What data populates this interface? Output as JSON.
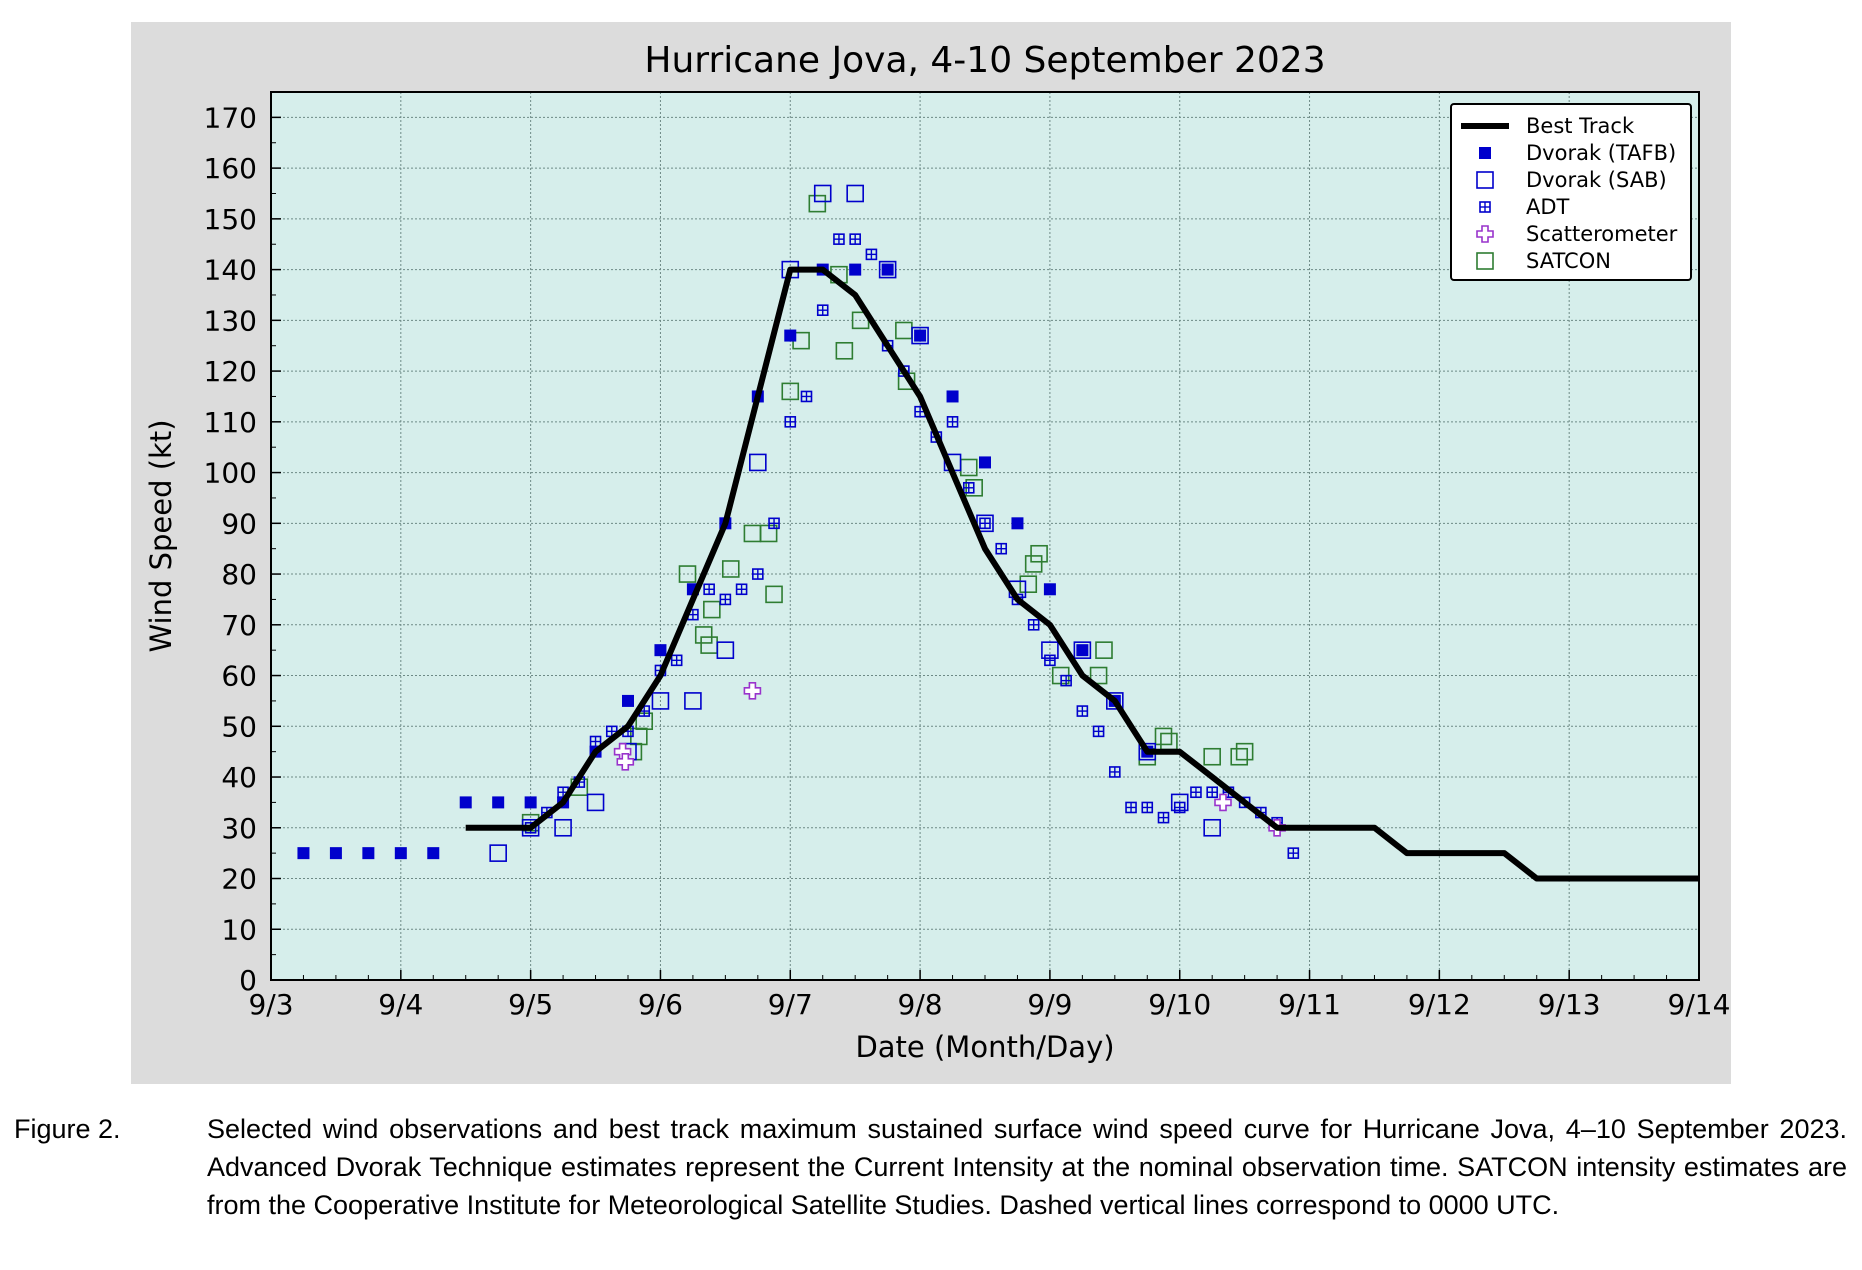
{
  "chart_data": {
    "type": "scatter",
    "title": "Hurricane Jova, 4-10 September 2023",
    "xlabel": "Date (Month/Day)",
    "ylabel": "Wind Speed (kt)",
    "xlim": [
      "9/3",
      "9/14"
    ],
    "ylim": [
      0,
      175
    ],
    "x_ticks": [
      "9/3",
      "9/4",
      "9/5",
      "9/6",
      "9/7",
      "9/8",
      "9/9",
      "9/10",
      "9/11",
      "9/12",
      "9/13",
      "9/14"
    ],
    "y_ticks": [
      0,
      10,
      20,
      30,
      40,
      50,
      60,
      70,
      80,
      90,
      100,
      110,
      120,
      130,
      140,
      150,
      160,
      170
    ],
    "grid": true,
    "legend_position": "top-right",
    "series": [
      {
        "name": "Best Track",
        "style": "line",
        "color": "#000000",
        "points": [
          [
            "9/4 12:00",
            30
          ],
          [
            "9/5 00:00",
            30
          ],
          [
            "9/5 06:00",
            35
          ],
          [
            "9/5 12:00",
            45
          ],
          [
            "9/5 18:00",
            50
          ],
          [
            "9/6 00:00",
            60
          ],
          [
            "9/6 06:00",
            75
          ],
          [
            "9/6 12:00",
            90
          ],
          [
            "9/6 18:00",
            115
          ],
          [
            "9/7 00:00",
            140
          ],
          [
            "9/7 06:00",
            140
          ],
          [
            "9/7 12:00",
            135
          ],
          [
            "9/7 18:00",
            125
          ],
          [
            "9/8 00:00",
            115
          ],
          [
            "9/8 06:00",
            100
          ],
          [
            "9/8 12:00",
            85
          ],
          [
            "9/8 18:00",
            75
          ],
          [
            "9/9 00:00",
            70
          ],
          [
            "9/9 06:00",
            60
          ],
          [
            "9/9 12:00",
            55
          ],
          [
            "9/9 18:00",
            45
          ],
          [
            "9/10 00:00",
            45
          ],
          [
            "9/10 06:00",
            40
          ],
          [
            "9/10 12:00",
            35
          ],
          [
            "9/10 18:00",
            30
          ],
          [
            "9/11 00:00",
            30
          ],
          [
            "9/11 06:00",
            30
          ],
          [
            "9/11 12:00",
            30
          ],
          [
            "9/11 18:00",
            25
          ],
          [
            "9/12 00:00",
            25
          ],
          [
            "9/12 06:00",
            25
          ],
          [
            "9/12 12:00",
            25
          ],
          [
            "9/12 18:00",
            20
          ],
          [
            "9/13 00:00",
            20
          ],
          [
            "9/13 06:00",
            20
          ],
          [
            "9/13 12:00",
            20
          ],
          [
            "9/13 18:00",
            20
          ],
          [
            "9/14 00:00",
            20
          ]
        ]
      },
      {
        "name": "Dvorak (TAFB)",
        "style": "filled-square",
        "color": "#0000cc",
        "points": [
          [
            "9/3 06:00",
            25
          ],
          [
            "9/3 12:00",
            25
          ],
          [
            "9/3 18:00",
            25
          ],
          [
            "9/4 00:00",
            25
          ],
          [
            "9/4 06:00",
            25
          ],
          [
            "9/4 12:00",
            35
          ],
          [
            "9/4 18:00",
            35
          ],
          [
            "9/5 00:00",
            35
          ],
          [
            "9/5 06:00",
            35
          ],
          [
            "9/5 12:00",
            45
          ],
          [
            "9/5 18:00",
            55
          ],
          [
            "9/6 00:00",
            65
          ],
          [
            "9/6 06:00",
            77
          ],
          [
            "9/6 12:00",
            90
          ],
          [
            "9/6 18:00",
            115
          ],
          [
            "9/7 00:00",
            127
          ],
          [
            "9/7 06:00",
            140
          ],
          [
            "9/7 12:00",
            140
          ],
          [
            "9/7 18:00",
            140
          ],
          [
            "9/8 00:00",
            127
          ],
          [
            "9/8 06:00",
            115
          ],
          [
            "9/8 12:00",
            102
          ],
          [
            "9/8 18:00",
            90
          ],
          [
            "9/9 00:00",
            77
          ],
          [
            "9/9 06:00",
            65
          ],
          [
            "9/9 12:00",
            55
          ],
          [
            "9/9 18:00",
            45
          ]
        ]
      },
      {
        "name": "Dvorak (SAB)",
        "style": "open-square",
        "color": "#0000cc",
        "points": [
          [
            "9/4 18:00",
            25
          ],
          [
            "9/5 00:00",
            30
          ],
          [
            "9/5 06:00",
            30
          ],
          [
            "9/5 12:00",
            35
          ],
          [
            "9/5 18:00",
            45
          ],
          [
            "9/6 00:00",
            55
          ],
          [
            "9/6 06:00",
            55
          ],
          [
            "9/6 12:00",
            65
          ],
          [
            "9/6 18:00",
            102
          ],
          [
            "9/7 00:00",
            140
          ],
          [
            "9/7 06:00",
            155
          ],
          [
            "9/7 12:00",
            155
          ],
          [
            "9/7 18:00",
            140
          ],
          [
            "9/8 00:00",
            127
          ],
          [
            "9/8 06:00",
            102
          ],
          [
            "9/8 12:00",
            90
          ],
          [
            "9/8 18:00",
            77
          ],
          [
            "9/9 00:00",
            65
          ],
          [
            "9/9 06:00",
            65
          ],
          [
            "9/9 12:00",
            55
          ],
          [
            "9/9 18:00",
            45
          ],
          [
            "9/10 00:00",
            35
          ],
          [
            "9/10 06:00",
            30
          ]
        ]
      },
      {
        "name": "ADT",
        "style": "grid-square",
        "color": "#0000cc",
        "points": [
          [
            "9/5 00:00",
            30
          ],
          [
            "9/5 03:00",
            33
          ],
          [
            "9/5 06:00",
            37
          ],
          [
            "9/5 09:00",
            39
          ],
          [
            "9/5 12:00",
            47
          ],
          [
            "9/5 15:00",
            49
          ],
          [
            "9/5 18:00",
            49
          ],
          [
            "9/5 21:00",
            53
          ],
          [
            "9/6 00:00",
            61
          ],
          [
            "9/6 03:00",
            63
          ],
          [
            "9/6 06:00",
            72
          ],
          [
            "9/6 09:00",
            77
          ],
          [
            "9/6 12:00",
            75
          ],
          [
            "9/6 15:00",
            77
          ],
          [
            "9/6 18:00",
            80
          ],
          [
            "9/6 21:00",
            90
          ],
          [
            "9/7 00:00",
            110
          ],
          [
            "9/7 03:00",
            115
          ],
          [
            "9/7 06:00",
            132
          ],
          [
            "9/7 09:00",
            146
          ],
          [
            "9/7 12:00",
            146
          ],
          [
            "9/7 15:00",
            143
          ],
          [
            "9/7 18:00",
            125
          ],
          [
            "9/7 21:00",
            120
          ],
          [
            "9/8 00:00",
            112
          ],
          [
            "9/8 03:00",
            107
          ],
          [
            "9/8 06:00",
            110
          ],
          [
            "9/8 09:00",
            97
          ],
          [
            "9/8 12:00",
            90
          ],
          [
            "9/8 15:00",
            85
          ],
          [
            "9/8 18:00",
            75
          ],
          [
            "9/8 21:00",
            70
          ],
          [
            "9/9 00:00",
            63
          ],
          [
            "9/9 03:00",
            59
          ],
          [
            "9/9 06:00",
            53
          ],
          [
            "9/9 09:00",
            49
          ],
          [
            "9/9 12:00",
            41
          ],
          [
            "9/9 15:00",
            34
          ],
          [
            "9/9 18:00",
            34
          ],
          [
            "9/9 21:00",
            32
          ],
          [
            "9/10 00:00",
            34
          ],
          [
            "9/10 03:00",
            37
          ],
          [
            "9/10 06:00",
            37
          ],
          [
            "9/10 09:00",
            37
          ],
          [
            "9/10 12:00",
            35
          ],
          [
            "9/10 15:00",
            33
          ],
          [
            "9/10 18:00",
            31
          ],
          [
            "9/10 21:00",
            25
          ]
        ]
      },
      {
        "name": "Scatterometer",
        "style": "open-cross",
        "color": "#9933cc",
        "points": [
          [
            "9/5 17:00",
            45
          ],
          [
            "9/5 17:30",
            43
          ],
          [
            "9/6 17:00",
            57
          ],
          [
            "9/10 08:00",
            35
          ],
          [
            "9/10 18:00",
            30
          ]
        ]
      },
      {
        "name": "SATCON",
        "style": "open-square",
        "color": "#2e7d32",
        "points": [
          [
            "9/5 00:00",
            31
          ],
          [
            "9/5 09:00",
            38
          ],
          [
            "9/5 19:00",
            45
          ],
          [
            "9/5 20:00",
            48
          ],
          [
            "9/5 21:00",
            51
          ],
          [
            "9/6 05:00",
            80
          ],
          [
            "9/6 08:00",
            68
          ],
          [
            "9/6 09:00",
            66
          ],
          [
            "9/6 09:30",
            73
          ],
          [
            "9/6 13:00",
            81
          ],
          [
            "9/6 17:00",
            88
          ],
          [
            "9/6 20:00",
            88
          ],
          [
            "9/6 21:00",
            76
          ],
          [
            "9/7 00:00",
            116
          ],
          [
            "9/7 02:00",
            126
          ],
          [
            "9/7 05:00",
            153
          ],
          [
            "9/7 09:00",
            139
          ],
          [
            "9/7 10:00",
            124
          ],
          [
            "9/7 13:00",
            130
          ],
          [
            "9/7 21:00",
            128
          ],
          [
            "9/7 21:30",
            118
          ],
          [
            "9/8 09:00",
            101
          ],
          [
            "9/8 10:00",
            97
          ],
          [
            "9/8 20:00",
            78
          ],
          [
            "9/8 21:00",
            82
          ],
          [
            "9/8 22:00",
            84
          ],
          [
            "9/9 02:00",
            60
          ],
          [
            "9/9 09:00",
            60
          ],
          [
            "9/9 10:00",
            65
          ],
          [
            "9/9 18:00",
            44
          ],
          [
            "9/9 21:00",
            48
          ],
          [
            "9/9 22:00",
            47
          ],
          [
            "9/10 06:00",
            44
          ],
          [
            "9/10 11:00",
            44
          ],
          [
            "9/10 12:00",
            45
          ]
        ]
      }
    ]
  },
  "caption": {
    "label": "Figure 2.",
    "text": "Selected wind observations and best track maximum sustained surface wind speed curve for Hurricane Jova, 4–10 September 2023.  Advanced Dvorak Technique estimates represent the Current Intensity at the nominal observation time.  SATCON intensity estimates are from the Cooperative Institute for Meteorological Satellite Studies.  Dashed vertical lines correspond to 0000 UTC."
  }
}
